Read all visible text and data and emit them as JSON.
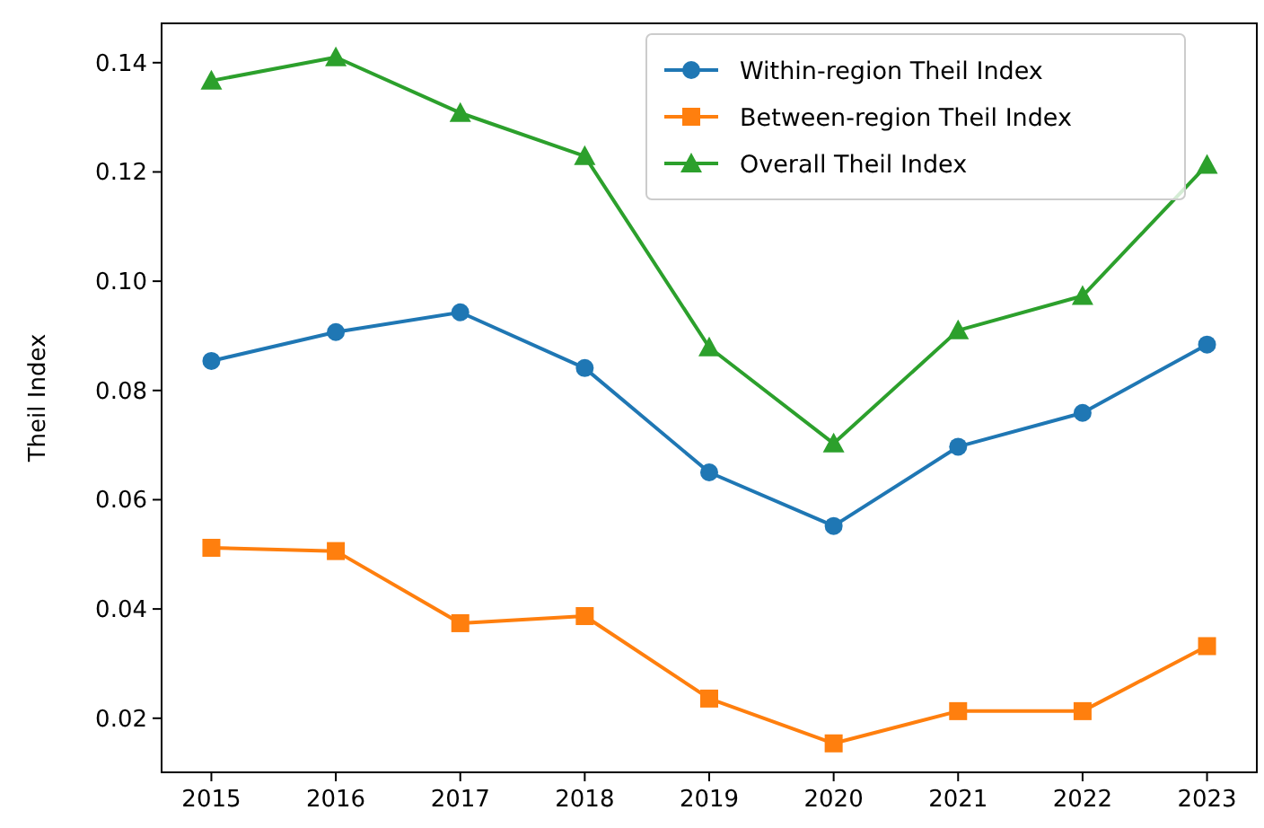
{
  "chart_data": {
    "type": "line",
    "ylabel": "Theil Index",
    "x": [
      2015,
      2016,
      2017,
      2018,
      2019,
      2020,
      2021,
      2022,
      2023
    ],
    "xlim": [
      2014.6,
      2023.4
    ],
    "xticks": [
      2015,
      2016,
      2017,
      2018,
      2019,
      2020,
      2021,
      2022,
      2023
    ],
    "ylim": [
      0.0101,
      0.1472
    ],
    "yticks": [
      {
        "value": 0.02,
        "label": "0.02"
      },
      {
        "value": 0.04,
        "label": "0.04"
      },
      {
        "value": 0.06,
        "label": "0.06"
      },
      {
        "value": 0.08,
        "label": "0.08"
      },
      {
        "value": 0.1,
        "label": "0.10"
      },
      {
        "value": 0.12,
        "label": "0.12"
      },
      {
        "value": 0.14,
        "label": "0.14"
      }
    ],
    "legend": "top right",
    "grid": false,
    "series": [
      {
        "name": "Within-region Theil Index",
        "color": "#1f77b4",
        "marker": "circle",
        "values": [
          0.0854,
          0.0907,
          0.0943,
          0.0841,
          0.065,
          0.0552,
          0.0697,
          0.0759,
          0.0884
        ]
      },
      {
        "name": "Between-region Theil Index",
        "color": "#ff7f0e",
        "marker": "square",
        "values": [
          0.0512,
          0.0506,
          0.0374,
          0.0387,
          0.0236,
          0.0154,
          0.0213,
          0.0213,
          0.0332
        ]
      },
      {
        "name": "Overall Theil Index",
        "color": "#2ca02c",
        "marker": "triangle",
        "values": [
          0.1367,
          0.141,
          0.1308,
          0.1229,
          0.0879,
          0.0703,
          0.091,
          0.0973,
          0.1213
        ]
      }
    ]
  }
}
